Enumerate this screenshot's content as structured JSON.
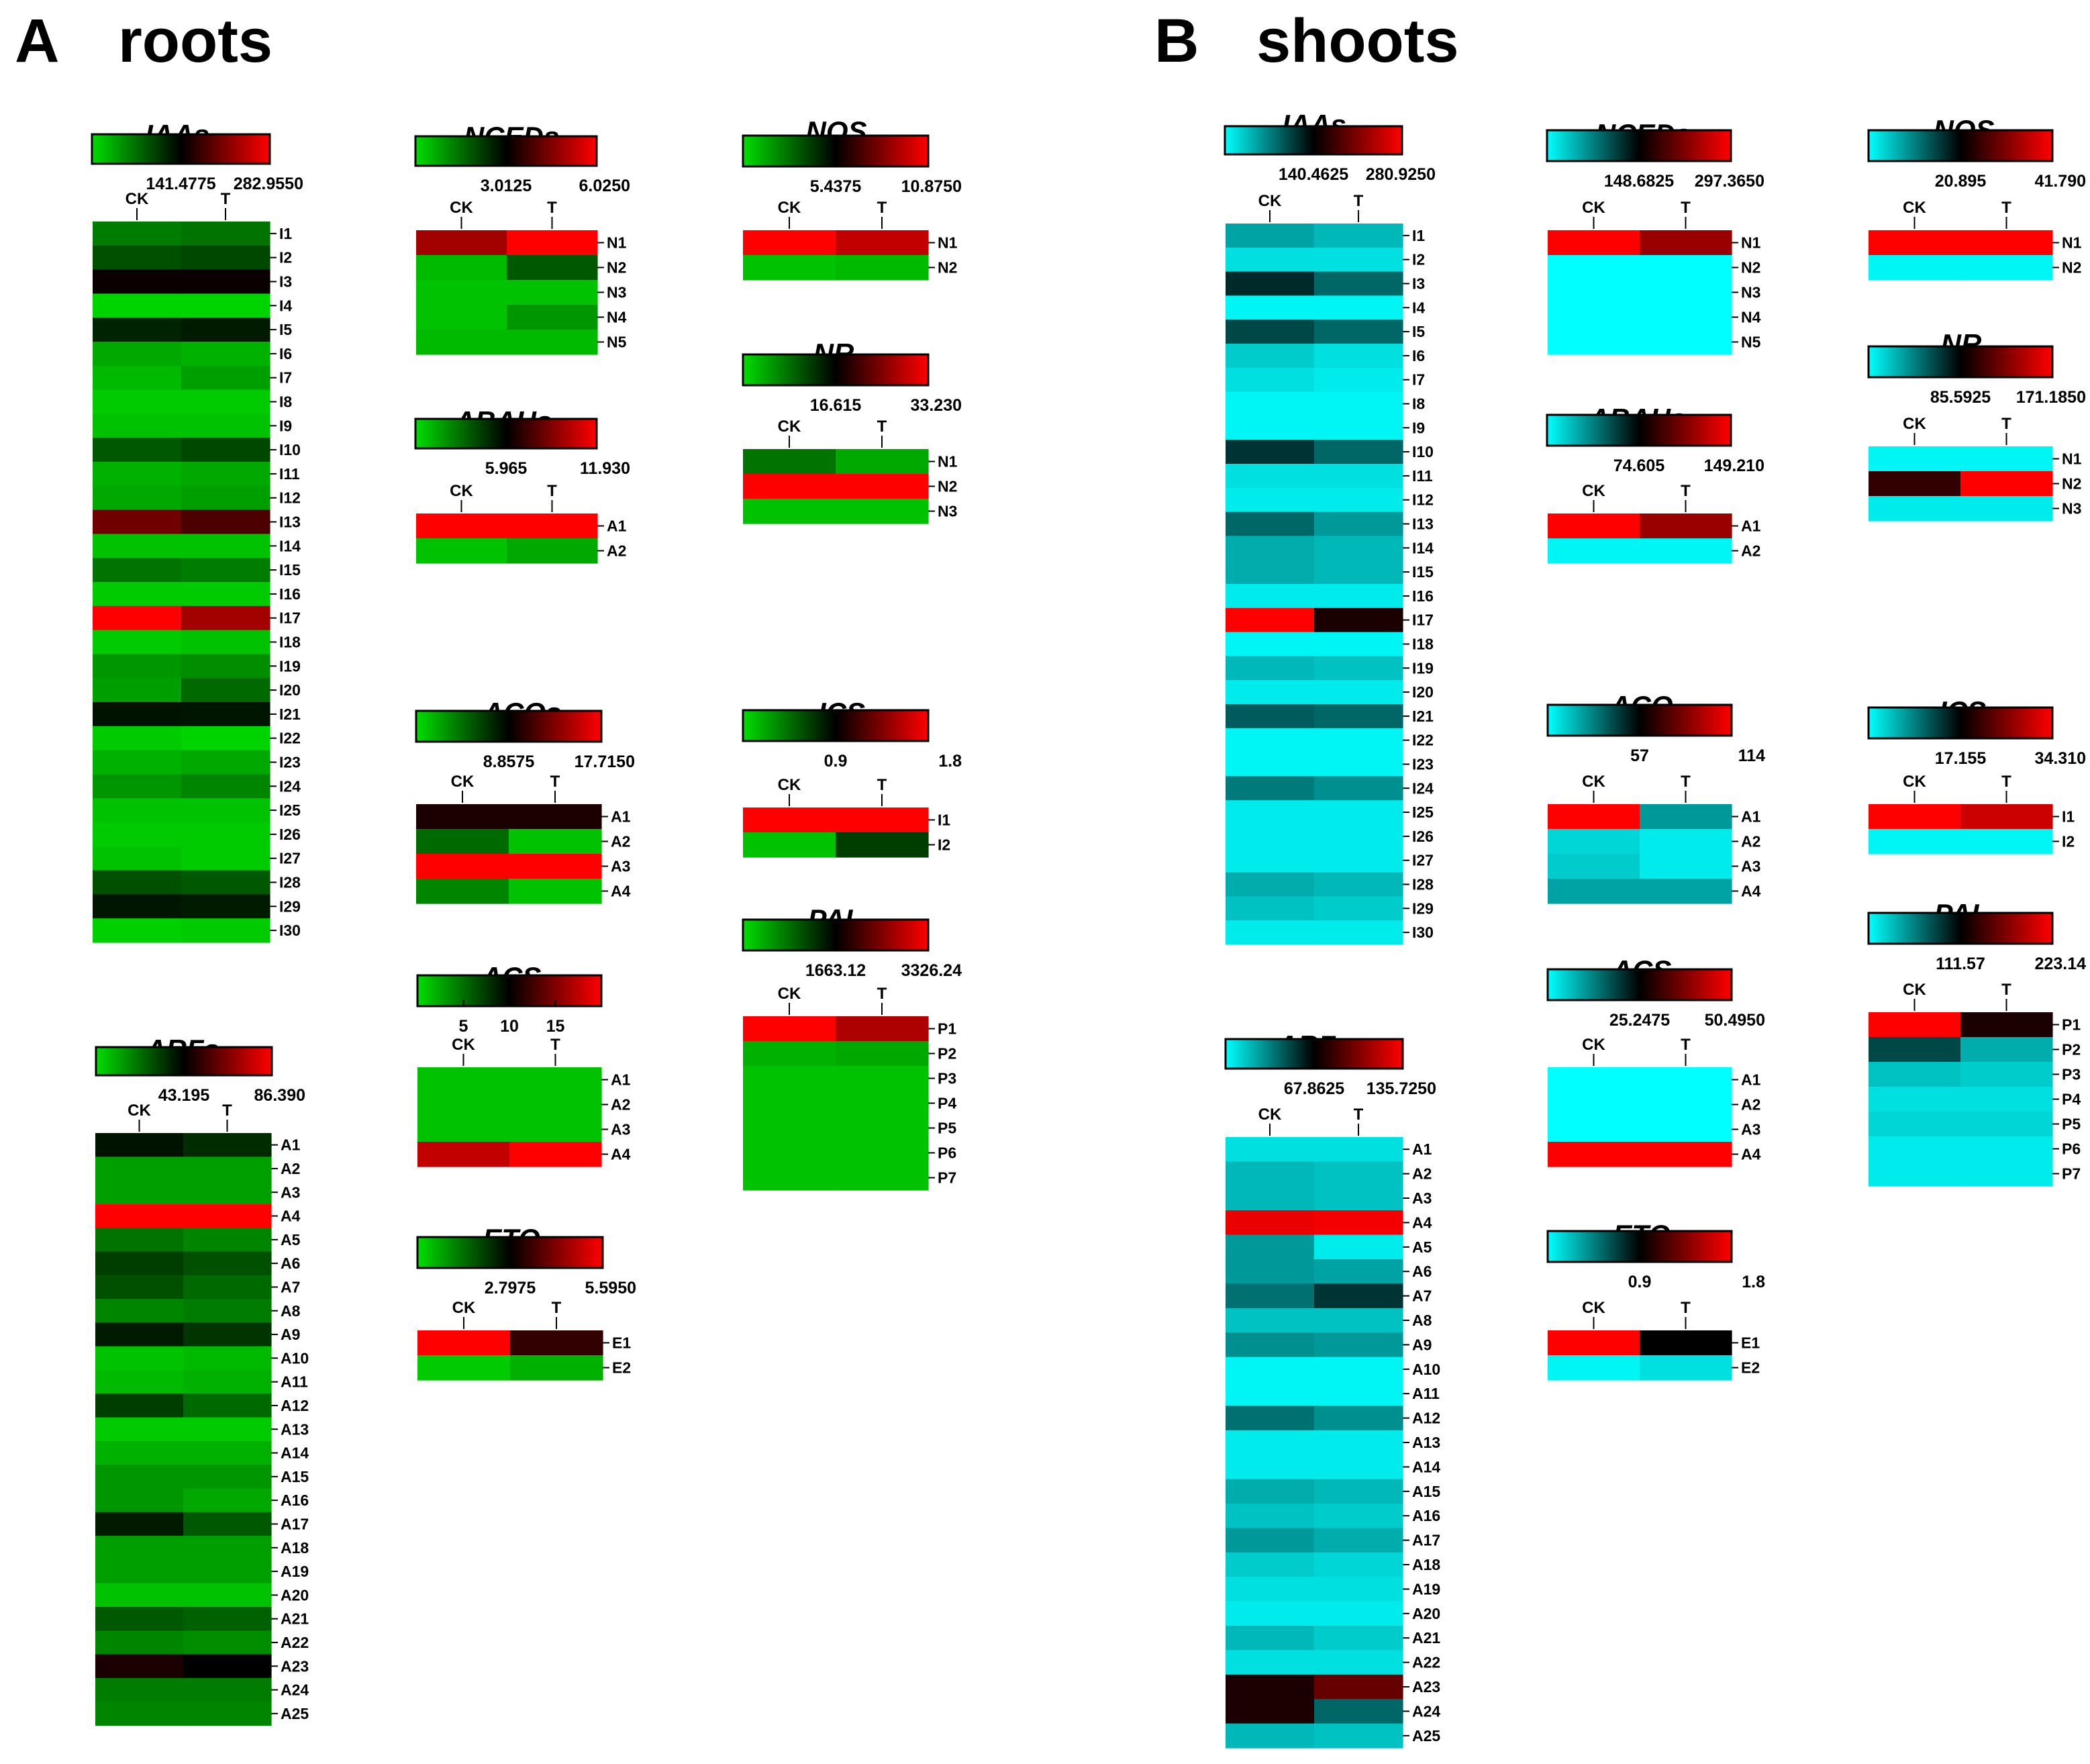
{
  "panels": [
    {
      "letter": "A",
      "title": "roots"
    },
    {
      "letter": "B",
      "title": "shoots"
    }
  ],
  "colors": {
    "roots_low": "#00dd00",
    "shoots_low": "#00ffff",
    "mid": "#000000",
    "high": "#ff0000"
  },
  "chart_data": [
    {
      "type": "heatmap",
      "panel": "roots",
      "title": "IAAs",
      "columns": [
        "CK",
        "T"
      ],
      "scale_labels": [
        "141.4775",
        "282.9550"
      ],
      "range": [
        0,
        282.955
      ],
      "rows": [
        "I1",
        "I2",
        "I3",
        "I4",
        "I5",
        "I6",
        "I7",
        "I8",
        "I9",
        "I10",
        "I11",
        "I12",
        "I13",
        "I14",
        "I15",
        "I16",
        "I17",
        "I18",
        "I19",
        "I20",
        "I21",
        "I22",
        "I23",
        "I24",
        "I25",
        "I26",
        "I27",
        "I28",
        "I29",
        "I30"
      ],
      "values": [
        [
          0.22,
          0.24
        ],
        [
          0.32,
          0.34
        ],
        [
          0.52,
          0.52
        ],
        [
          0.02,
          0.02
        ],
        [
          0.42,
          0.44
        ],
        [
          0.12,
          0.1
        ],
        [
          0.08,
          0.14
        ],
        [
          0.04,
          0.04
        ],
        [
          0.06,
          0.06
        ],
        [
          0.3,
          0.34
        ],
        [
          0.1,
          0.12
        ],
        [
          0.12,
          0.14
        ],
        [
          0.72,
          0.65
        ],
        [
          0.06,
          0.06
        ],
        [
          0.24,
          0.22
        ],
        [
          0.04,
          0.04
        ],
        [
          1.0,
          0.82
        ],
        [
          0.04,
          0.06
        ],
        [
          0.16,
          0.18
        ],
        [
          0.14,
          0.26
        ],
        [
          0.46,
          0.45
        ],
        [
          0.04,
          0.02
        ],
        [
          0.1,
          0.12
        ],
        [
          0.16,
          0.2
        ],
        [
          0.06,
          0.06
        ],
        [
          0.04,
          0.04
        ],
        [
          0.06,
          0.04
        ],
        [
          0.32,
          0.3
        ],
        [
          0.45,
          0.44
        ],
        [
          0.03,
          0.04
        ]
      ]
    },
    {
      "type": "heatmap",
      "panel": "roots",
      "title": "ARFs",
      "columns": [
        "CK",
        "T"
      ],
      "scale_labels": [
        "43.195",
        "86.390"
      ],
      "range": [
        0,
        86.39
      ],
      "rows": [
        "A1",
        "A2",
        "A3",
        "A4",
        "A5",
        "A6",
        "A7",
        "A8",
        "A9",
        "A10",
        "A11",
        "A12",
        "A13",
        "A14",
        "A15",
        "A16",
        "A17",
        "A18",
        "A19",
        "A20",
        "A21",
        "A22",
        "A23",
        "A24",
        "A25"
      ],
      "values": [
        [
          0.46,
          0.4
        ],
        [
          0.14,
          0.14
        ],
        [
          0.14,
          0.14
        ],
        [
          1.0,
          1.0
        ],
        [
          0.24,
          0.2
        ],
        [
          0.36,
          0.32
        ],
        [
          0.32,
          0.26
        ],
        [
          0.2,
          0.22
        ],
        [
          0.44,
          0.38
        ],
        [
          0.06,
          0.08
        ],
        [
          0.08,
          0.1
        ],
        [
          0.36,
          0.26
        ],
        [
          0.04,
          0.04
        ],
        [
          0.1,
          0.1
        ],
        [
          0.16,
          0.16
        ],
        [
          0.16,
          0.12
        ],
        [
          0.44,
          0.3
        ],
        [
          0.14,
          0.14
        ],
        [
          0.14,
          0.14
        ],
        [
          0.06,
          0.06
        ],
        [
          0.3,
          0.28
        ],
        [
          0.2,
          0.18
        ],
        [
          0.55,
          0.5
        ],
        [
          0.22,
          0.22
        ],
        [
          0.2,
          0.2
        ]
      ]
    },
    {
      "type": "heatmap",
      "panel": "roots",
      "title": "NCEDs",
      "columns": [
        "CK",
        "T"
      ],
      "scale_labels": [
        "3.0125",
        "6.0250"
      ],
      "range": [
        0,
        6.025
      ],
      "rows": [
        "N1",
        "N2",
        "N3",
        "N4",
        "N5"
      ],
      "values": [
        [
          0.82,
          1.0
        ],
        [
          0.08,
          0.3
        ],
        [
          0.06,
          0.06
        ],
        [
          0.06,
          0.16
        ],
        [
          0.08,
          0.08
        ]
      ]
    },
    {
      "type": "heatmap",
      "panel": "roots",
      "title": "ABAHs",
      "columns": [
        "CK",
        "T"
      ],
      "scale_labels": [
        "5.965",
        "11.930"
      ],
      "range": [
        0,
        11.93
      ],
      "rows": [
        "A1",
        "A2"
      ],
      "values": [
        [
          1.0,
          1.0
        ],
        [
          0.06,
          0.12
        ]
      ]
    },
    {
      "type": "heatmap",
      "panel": "roots",
      "title": "ACOs",
      "columns": [
        "CK",
        "T"
      ],
      "scale_labels": [
        "8.8575",
        "17.7150"
      ],
      "range": [
        0,
        17.715
      ],
      "rows": [
        "A1",
        "A2",
        "A3",
        "A4"
      ],
      "values": [
        [
          0.55,
          0.55
        ],
        [
          0.26,
          0.06
        ],
        [
          1.0,
          1.0
        ],
        [
          0.2,
          0.06
        ]
      ]
    },
    {
      "type": "heatmap",
      "panel": "roots",
      "title": "ACS",
      "columns": [
        "CK",
        "T"
      ],
      "scale_labels": [
        "5",
        "10",
        "15"
      ],
      "range": [
        0,
        20
      ],
      "rows": [
        "A1",
        "A2",
        "A3",
        "A4"
      ],
      "values": [
        [
          0.06,
          0.06
        ],
        [
          0.06,
          0.06
        ],
        [
          0.06,
          0.06
        ],
        [
          0.88,
          1.0
        ]
      ]
    },
    {
      "type": "heatmap",
      "panel": "roots",
      "title": "ETO",
      "columns": [
        "CK",
        "T"
      ],
      "scale_labels": [
        "2.7975",
        "5.5950"
      ],
      "range": [
        0,
        5.595
      ],
      "rows": [
        "E1",
        "E2"
      ],
      "values": [
        [
          1.0,
          0.6
        ],
        [
          0.04,
          0.1
        ]
      ]
    },
    {
      "type": "heatmap",
      "panel": "roots",
      "title": "NOS",
      "columns": [
        "CK",
        "T"
      ],
      "scale_labels": [
        "5.4375",
        "10.8750"
      ],
      "range": [
        0,
        10.875
      ],
      "rows": [
        "N1",
        "N2"
      ],
      "values": [
        [
          1.0,
          0.88
        ],
        [
          0.06,
          0.08
        ]
      ]
    },
    {
      "type": "heatmap",
      "panel": "roots",
      "title": "NR",
      "columns": [
        "CK",
        "T"
      ],
      "scale_labels": [
        "16.615",
        "33.230"
      ],
      "range": [
        0,
        33.23
      ],
      "rows": [
        "N1",
        "N2",
        "N3"
      ],
      "values": [
        [
          0.24,
          0.12
        ],
        [
          1.0,
          1.0
        ],
        [
          0.06,
          0.06
        ]
      ]
    },
    {
      "type": "heatmap",
      "panel": "roots",
      "title": "ICS",
      "columns": [
        "CK",
        "T"
      ],
      "scale_labels": [
        "0.9",
        "1.8"
      ],
      "range": [
        0,
        1.8
      ],
      "rows": [
        "I1",
        "I2"
      ],
      "values": [
        [
          1.0,
          1.0
        ],
        [
          0.06,
          0.36
        ]
      ]
    },
    {
      "type": "heatmap",
      "panel": "roots",
      "title": "PAL",
      "columns": [
        "CK",
        "T"
      ],
      "scale_labels": [
        "1663.12",
        "3326.24"
      ],
      "range": [
        0,
        3326.24
      ],
      "rows": [
        "P1",
        "P2",
        "P3",
        "P4",
        "P5",
        "P6",
        "P7"
      ],
      "values": [
        [
          1.0,
          0.84
        ],
        [
          0.1,
          0.12
        ],
        [
          0.06,
          0.06
        ],
        [
          0.06,
          0.06
        ],
        [
          0.06,
          0.06
        ],
        [
          0.06,
          0.06
        ],
        [
          0.06,
          0.06
        ]
      ]
    },
    {
      "type": "heatmap",
      "panel": "shoots",
      "title": "IAAs",
      "columns": [
        "CK",
        "T"
      ],
      "scale_labels": [
        "140.4625",
        "280.9250"
      ],
      "range": [
        0,
        280.925
      ],
      "rows": [
        "I1",
        "I2",
        "I3",
        "I4",
        "I5",
        "I6",
        "I7",
        "I8",
        "I9",
        "I10",
        "I11",
        "I12",
        "I13",
        "I14",
        "I15",
        "I16",
        "I17",
        "I18",
        "I19",
        "I20",
        "I21",
        "I22",
        "I23",
        "I24",
        "I25",
        "I26",
        "I27",
        "I28",
        "I29",
        "I30"
      ],
      "values": [
        [
          0.18,
          0.14
        ],
        [
          0.06,
          0.06
        ],
        [
          0.42,
          0.3
        ],
        [
          0.02,
          0.02
        ],
        [
          0.36,
          0.3
        ],
        [
          0.1,
          0.06
        ],
        [
          0.06,
          0.04
        ],
        [
          0.02,
          0.02
        ],
        [
          0.02,
          0.02
        ],
        [
          0.4,
          0.3
        ],
        [
          0.06,
          0.06
        ],
        [
          0.04,
          0.04
        ],
        [
          0.3,
          0.2
        ],
        [
          0.16,
          0.14
        ],
        [
          0.16,
          0.14
        ],
        [
          0.04,
          0.04
        ],
        [
          1.0,
          0.55
        ],
        [
          0.02,
          0.02
        ],
        [
          0.14,
          0.12
        ],
        [
          0.04,
          0.04
        ],
        [
          0.32,
          0.3
        ],
        [
          0.02,
          0.02
        ],
        [
          0.02,
          0.02
        ],
        [
          0.26,
          0.22
        ],
        [
          0.04,
          0.04
        ],
        [
          0.04,
          0.04
        ],
        [
          0.04,
          0.04
        ],
        [
          0.16,
          0.14
        ],
        [
          0.12,
          0.1
        ],
        [
          0.04,
          0.04
        ]
      ]
    },
    {
      "type": "heatmap",
      "panel": "shoots",
      "title": "ARFs",
      "columns": [
        "CK",
        "T"
      ],
      "scale_labels": [
        "67.8625",
        "135.7250"
      ],
      "range": [
        0,
        135.725
      ],
      "rows": [
        "A1",
        "A2",
        "A3",
        "A4",
        "A5",
        "A6",
        "A7",
        "A8",
        "A9",
        "A10",
        "A11",
        "A12",
        "A13",
        "A14",
        "A15",
        "A16",
        "A17",
        "A18",
        "A19",
        "A20",
        "A21",
        "A22",
        "A23",
        "A24",
        "A25"
      ],
      "values": [
        [
          0.06,
          0.06
        ],
        [
          0.14,
          0.12
        ],
        [
          0.14,
          0.12
        ],
        [
          0.96,
          0.98
        ],
        [
          0.2,
          0.04
        ],
        [
          0.2,
          0.18
        ],
        [
          0.28,
          0.4
        ],
        [
          0.12,
          0.12
        ],
        [
          0.22,
          0.2
        ],
        [
          0.02,
          0.02
        ],
        [
          0.02,
          0.02
        ],
        [
          0.28,
          0.22
        ],
        [
          0.04,
          0.04
        ],
        [
          0.04,
          0.04
        ],
        [
          0.16,
          0.14
        ],
        [
          0.12,
          0.1
        ],
        [
          0.2,
          0.16
        ],
        [
          0.1,
          0.08
        ],
        [
          0.06,
          0.06
        ],
        [
          0.04,
          0.04
        ],
        [
          0.14,
          0.1
        ],
        [
          0.06,
          0.06
        ],
        [
          0.55,
          0.7
        ],
        [
          0.55,
          0.3
        ],
        [
          0.14,
          0.12
        ]
      ]
    },
    {
      "type": "heatmap",
      "panel": "shoots",
      "title": "NCEDs",
      "columns": [
        "CK",
        "T"
      ],
      "scale_labels": [
        "148.6825",
        "297.3650"
      ],
      "range": [
        0,
        297.365
      ],
      "rows": [
        "N1",
        "N2",
        "N3",
        "N4",
        "N5"
      ],
      "values": [
        [
          1.0,
          0.8
        ],
        [
          0.0,
          0.0
        ],
        [
          0.0,
          0.0
        ],
        [
          0.0,
          0.0
        ],
        [
          0.0,
          0.0
        ]
      ]
    },
    {
      "type": "heatmap",
      "panel": "shoots",
      "title": "ABAHs",
      "columns": [
        "CK",
        "T"
      ],
      "scale_labels": [
        "74.605",
        "149.210"
      ],
      "range": [
        0,
        149.21
      ],
      "rows": [
        "A1",
        "A2"
      ],
      "values": [
        [
          1.0,
          0.8
        ],
        [
          0.02,
          0.02
        ]
      ]
    },
    {
      "type": "heatmap",
      "panel": "shoots",
      "title": "ACO",
      "columns": [
        "CK",
        "T"
      ],
      "scale_labels": [
        "57",
        "114"
      ],
      "range": [
        0,
        114
      ],
      "rows": [
        "A1",
        "A2",
        "A3",
        "A4"
      ],
      "values": [
        [
          1.0,
          0.2
        ],
        [
          0.08,
          0.04
        ],
        [
          0.1,
          0.04
        ],
        [
          0.18,
          0.18
        ]
      ]
    },
    {
      "type": "heatmap",
      "panel": "shoots",
      "title": "ACS",
      "columns": [
        "CK",
        "T"
      ],
      "scale_labels": [
        "25.2475",
        "50.4950"
      ],
      "range": [
        0,
        50.495
      ],
      "rows": [
        "A1",
        "A2",
        "A3",
        "A4"
      ],
      "values": [
        [
          0.0,
          0.0
        ],
        [
          0.0,
          0.0
        ],
        [
          0.0,
          0.0
        ],
        [
          1.0,
          1.0
        ]
      ]
    },
    {
      "type": "heatmap",
      "panel": "shoots",
      "title": "ETO",
      "columns": [
        "CK",
        "T"
      ],
      "scale_labels": [
        "0.9",
        "1.8"
      ],
      "range": [
        0,
        1.8
      ],
      "rows": [
        "E1",
        "E2"
      ],
      "values": [
        [
          1.0,
          0.5
        ],
        [
          0.02,
          0.06
        ]
      ]
    },
    {
      "type": "heatmap",
      "panel": "shoots",
      "title": "NOS",
      "columns": [
        "CK",
        "T"
      ],
      "scale_labels": [
        "20.895",
        "41.790"
      ],
      "range": [
        0,
        41.79
      ],
      "rows": [
        "N1",
        "N2"
      ],
      "values": [
        [
          1.0,
          1.0
        ],
        [
          0.02,
          0.02
        ]
      ]
    },
    {
      "type": "heatmap",
      "panel": "shoots",
      "title": "NR",
      "columns": [
        "CK",
        "T"
      ],
      "scale_labels": [
        "85.5925",
        "171.1850"
      ],
      "range": [
        0,
        171.185
      ],
      "rows": [
        "N1",
        "N2",
        "N3"
      ],
      "values": [
        [
          0.02,
          0.02
        ],
        [
          0.6,
          1.0
        ],
        [
          0.04,
          0.04
        ]
      ]
    },
    {
      "type": "heatmap",
      "panel": "shoots",
      "title": "ICS",
      "columns": [
        "CK",
        "T"
      ],
      "scale_labels": [
        "17.155",
        "34.310"
      ],
      "range": [
        0,
        34.31
      ],
      "rows": [
        "I1",
        "I2"
      ],
      "values": [
        [
          1.0,
          0.9
        ],
        [
          0.02,
          0.02
        ]
      ]
    },
    {
      "type": "heatmap",
      "panel": "shoots",
      "title": "PAL",
      "columns": [
        "CK",
        "T"
      ],
      "scale_labels": [
        "111.57",
        "223.14"
      ],
      "range": [
        0,
        223.14
      ],
      "rows": [
        "P1",
        "P2",
        "P3",
        "P4",
        "P5",
        "P6",
        "P7"
      ],
      "values": [
        [
          1.0,
          0.55
        ],
        [
          0.36,
          0.16
        ],
        [
          0.12,
          0.1
        ],
        [
          0.06,
          0.06
        ],
        [
          0.08,
          0.08
        ],
        [
          0.04,
          0.04
        ],
        [
          0.04,
          0.04
        ]
      ]
    }
  ]
}
